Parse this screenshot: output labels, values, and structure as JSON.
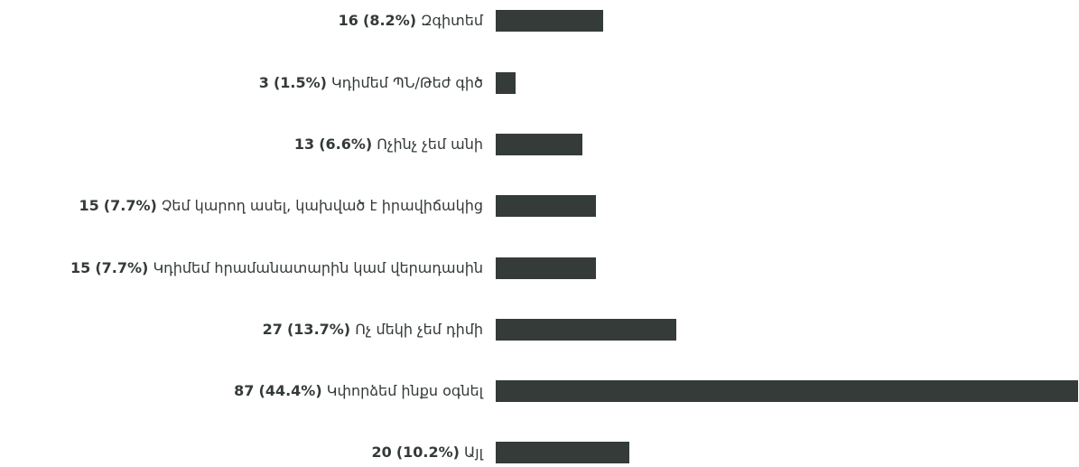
{
  "chart_data": {
    "type": "bar",
    "orientation": "horizontal",
    "bar_color": "#343b38",
    "text_color": "#333a37",
    "xlim": [
      0,
      87
    ],
    "categories": [
      "Զգիտեմ",
      "Կդիմեմ ՊՆ/Թեժ գիծ",
      "Ոչինչ չեմ անի",
      "Չեմ կարող ասել, կախված է իրավիճակից",
      "Կդիմեմ հրամանատարին կամ վերադասին",
      "Ոչ մեկի չեմ դիմի",
      "Կփորձեմ ինքս օգնել",
      "Այլ"
    ],
    "values": [
      16,
      3,
      13,
      15,
      15,
      27,
      87,
      20
    ],
    "percent_labels": [
      "(8.2%)",
      "(1.5%)",
      "(6.6%)",
      "(7.7%)",
      "(7.7%)",
      "(13.7%)",
      "(44.4%)",
      "(10.2%)"
    ],
    "count_labels": [
      "16",
      "3",
      "13",
      "15",
      "15",
      "27",
      "87",
      "20"
    ]
  }
}
